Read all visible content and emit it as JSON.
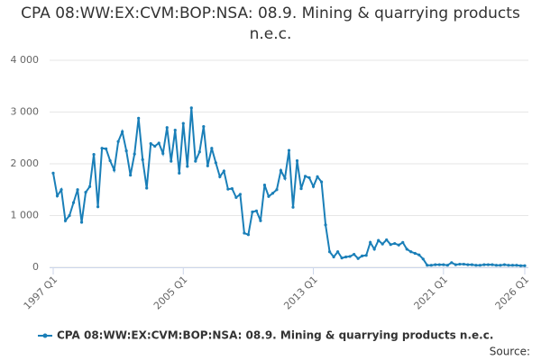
{
  "chart_data": {
    "type": "line",
    "title": "CPA 08:WW:EX:CVM:BOP:NSA: 08.9. Mining & quarrying products n.e.c.",
    "categories": [
      "1997 Q1",
      null,
      null,
      null,
      null,
      null,
      null,
      null,
      null,
      null,
      null,
      null,
      null,
      null,
      null,
      null,
      null,
      null,
      null,
      null,
      null,
      null,
      null,
      null,
      null,
      null,
      null,
      null,
      null,
      null,
      null,
      null,
      "2005 Q1",
      null,
      null,
      null,
      null,
      null,
      null,
      null,
      null,
      null,
      null,
      null,
      null,
      null,
      null,
      null,
      null,
      null,
      null,
      null,
      null,
      null,
      null,
      null,
      null,
      null,
      null,
      null,
      null,
      null,
      null,
      null,
      "2013 Q1",
      null,
      null,
      null,
      null,
      null,
      null,
      null,
      null,
      null,
      null,
      null,
      null,
      null,
      null,
      null,
      null,
      null,
      null,
      null,
      null,
      null,
      null,
      null,
      null,
      null,
      null,
      null,
      null,
      null,
      null,
      null,
      "2021 Q1",
      null,
      null,
      null,
      null,
      null,
      null,
      null,
      null,
      null,
      null,
      null,
      null,
      null,
      null,
      null,
      null,
      null,
      null,
      null,
      "2026 Q1"
    ],
    "series": [
      {
        "name": "CPA 08:WW:EX:CVM:BOP:NSA: 08.9. Mining & quarrying products n.e.c.",
        "color": "#1a7fb8",
        "values": [
          1820,
          1380,
          1500,
          900,
          1000,
          1250,
          1500,
          870,
          1450,
          1560,
          2180,
          1170,
          2300,
          2290,
          2060,
          1880,
          2430,
          2620,
          2250,
          1780,
          2190,
          2880,
          2080,
          1530,
          2390,
          2340,
          2400,
          2200,
          2700,
          2050,
          2650,
          1820,
          2780,
          1950,
          3080,
          2050,
          2230,
          2720,
          1960,
          2300,
          2020,
          1750,
          1860,
          1510,
          1520,
          1350,
          1410,
          660,
          630,
          1070,
          1090,
          900,
          1590,
          1370,
          1430,
          1500,
          1870,
          1720,
          2260,
          1160,
          2060,
          1520,
          1760,
          1730,
          1560,
          1750,
          1650,
          820,
          300,
          200,
          300,
          180,
          200,
          210,
          250,
          170,
          220,
          230,
          480,
          350,
          520,
          450,
          530,
          440,
          460,
          430,
          480,
          350,
          300,
          270,
          240,
          160,
          40,
          40,
          50,
          50,
          50,
          40,
          90,
          50,
          60,
          60,
          50,
          50,
          40,
          40,
          50,
          50,
          50,
          40,
          40,
          50,
          40,
          40,
          40,
          30,
          30
        ]
      }
    ],
    "ylim": [
      0,
      4000
    ],
    "yticks": [
      0,
      {
        "value": 1000,
        "label": "1 000"
      },
      {
        "value": 2000,
        "label": "2 000"
      },
      {
        "value": 3000,
        "label": "3 000"
      },
      {
        "value": 4000,
        "label": "4 000"
      }
    ],
    "grid": true,
    "source": "Source:"
  }
}
